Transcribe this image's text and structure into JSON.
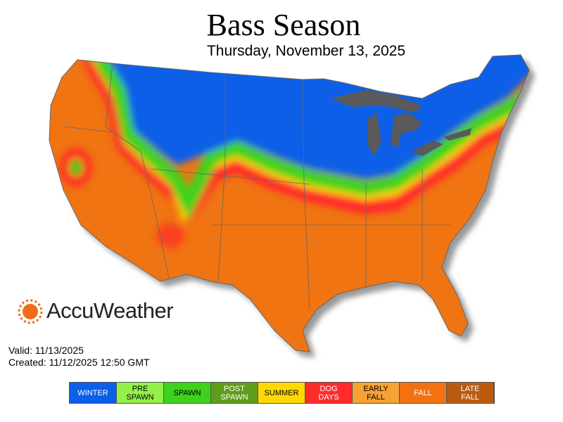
{
  "header": {
    "title": "Bass Season",
    "subtitle": "Thursday, November 13, 2025"
  },
  "logo": "AccuWeather",
  "footer": {
    "valid": "Valid: 11/13/2025",
    "created": "Created: 11/12/2025 12:50 GMT"
  },
  "legend": [
    {
      "label": "WINTER",
      "color": "#0b5fe8",
      "text_color": "#ffffff"
    },
    {
      "label": "PRE SPAWN",
      "color": "#93f04a",
      "text_color": "#000000"
    },
    {
      "label": "SPAWN",
      "color": "#3fd21c",
      "text_color": "#000000"
    },
    {
      "label": "POST SPAWN",
      "color": "#5f9d1c",
      "text_color": "#ffffff"
    },
    {
      "label": "SUMMER",
      "color": "#ffd800",
      "text_color": "#000000"
    },
    {
      "label": "DOG DAYS",
      "color": "#ff2b2b",
      "text_color": "#ffffff"
    },
    {
      "label": "EARLY FALL",
      "color": "#f7a234",
      "text_color": "#000000"
    },
    {
      "label": "FALL",
      "color": "#f27212",
      "text_color": "#ffffff"
    },
    {
      "label": "LATE FALL",
      "color": "#b95c12",
      "text_color": "#ffffff"
    }
  ]
}
